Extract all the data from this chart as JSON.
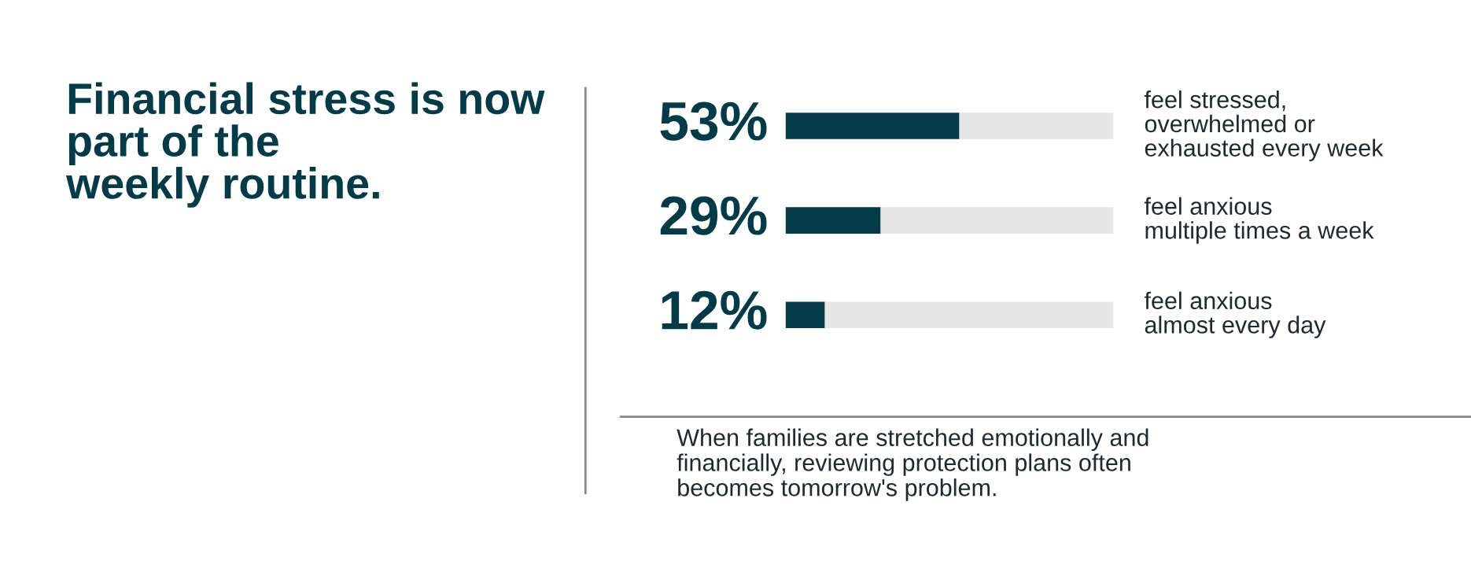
{
  "chart_data": {
    "type": "bar",
    "orientation": "horizontal",
    "stacked": true,
    "title": "Financial stress is now\npart of the\nweekly routine.",
    "categories": [
      "feel stressed,\noverwhelmed or\nexhausted every week",
      "feel anxious\nmultiple times a week",
      "feel anxious\nalmost every day"
    ],
    "series": [
      {
        "color": "#033b48",
        "values": [
          53,
          29,
          12
        ],
        "value_labels": [
          "53%",
          "29%",
          "12%"
        ]
      },
      {
        "color": "#e6e6e6",
        "values": [
          47,
          71,
          88
        ]
      }
    ],
    "xlim": [
      0,
      100
    ],
    "tick_labels": false,
    "legend": false,
    "annotations": [
      "When families are stretched emotionally and\nfinancially, reviewing protection plans often\nbecomes tomorrow's problem."
    ]
  }
}
